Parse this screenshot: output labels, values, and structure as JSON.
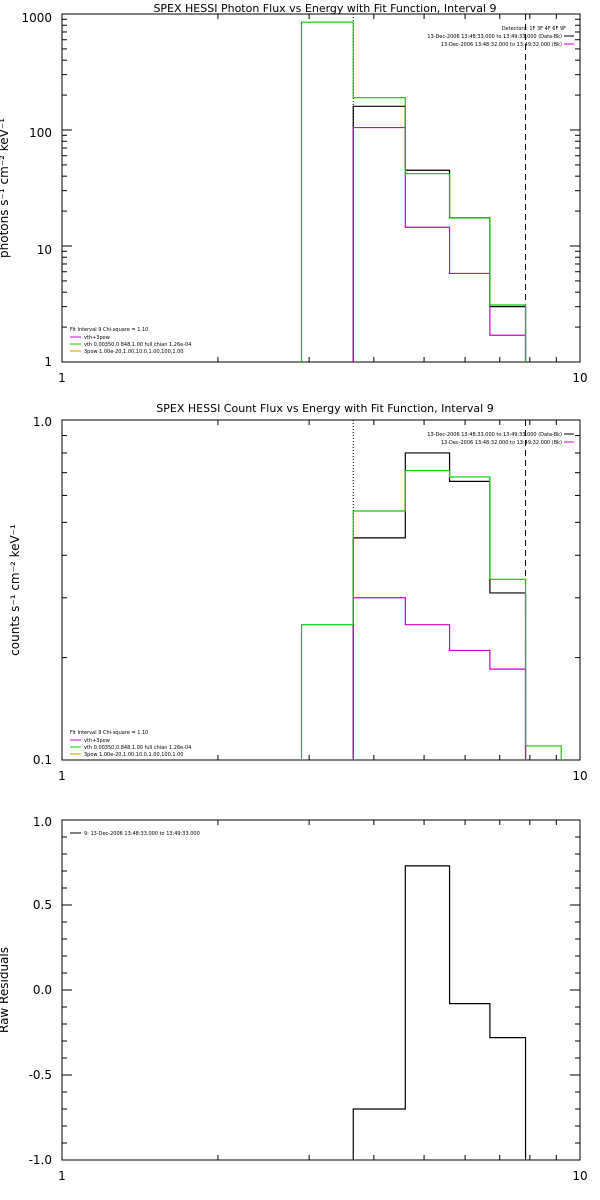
{
  "chart_data": [
    {
      "type": "line",
      "title": "SPEX HESSI Photon Flux vs Energy with Fit Function, Interval 9",
      "ylabel": "photons s⁻¹ cm⁻² keV⁻¹",
      "xlabel": "",
      "xscale": "log",
      "yscale": "log",
      "xlim": [
        1,
        10
      ],
      "ylim": [
        1,
        1000
      ],
      "x_ticks": [
        "1",
        "10"
      ],
      "y_ticks": [
        "1",
        "10",
        "100",
        "1000"
      ],
      "legend_top_right": [
        {
          "text": "Detectors: 1F 3F 4F 6F 9F",
          "color": null
        },
        {
          "text": "13-Dec-2006 13:48:33.000 to 13:49:33.000 (Data-Bk)",
          "color": "#000000"
        },
        {
          "text": "13-Dec-2006 13:48:32.000 to 13:49:32.000 (Bk)",
          "color": "#cc00cc"
        }
      ],
      "legend_bottom_left": [
        {
          "text": "Fit Interval 9   Chi-square = 1.10",
          "color": null
        },
        {
          "text": "vth+3pow",
          "color": "#cc00cc"
        },
        {
          "text": "vth 0.00350,0.848,1.00  full chian 1.26e-04",
          "color": "#00cc00"
        },
        {
          "text": "3pow 1.00e-20,1.00,10.0,1.00,100,1.00",
          "color": "#cc9900"
        }
      ],
      "vlines": [
        {
          "x": 3.65,
          "style": "dotted"
        },
        {
          "x": 7.85,
          "style": "dashed"
        }
      ],
      "series": [
        {
          "name": "13-Dec-2006 13:48:33.000 to 13:49:33.000 (Data-Bk)",
          "color": "#000000",
          "edges": [
            3.65,
            4.6,
            5.6,
            6.7,
            7.85
          ],
          "values": [
            160,
            45,
            17.5,
            3.0
          ]
        },
        {
          "name": "13-Dec-2006 13:48:32.000 to 13:49:32.000 (Bk)",
          "color": "#cc00cc",
          "edges": [
            3.65,
            4.6,
            5.6,
            6.7,
            7.85
          ],
          "values": [
            105,
            14.5,
            5.8,
            1.7
          ]
        },
        {
          "name": "vth 0.00350,0.848,1.00  full chian 1.26e-04",
          "color": "#00cc00",
          "edges": [
            2.9,
            3.65,
            4.6,
            5.6,
            6.7,
            7.85
          ],
          "values": [
            850,
            190,
            42,
            17.5,
            3.1
          ]
        }
      ]
    },
    {
      "type": "line",
      "title": "SPEX HESSI Count Flux vs Energy with Fit Function, Interval 9",
      "ylabel": "counts s⁻¹ cm⁻² keV⁻¹",
      "xlabel": "",
      "xscale": "log",
      "yscale": "log",
      "xlim": [
        1,
        10
      ],
      "ylim": [
        0.1,
        1.0
      ],
      "x_ticks": [
        "1",
        "10"
      ],
      "y_ticks": [
        "0.1",
        "1.0"
      ],
      "legend_top_right": [
        {
          "text": "13-Dec-2006 13:48:33.000 to 13:49:33.000 (Data-Bk)",
          "color": "#000000"
        },
        {
          "text": "13-Dec-2006 13:48:32.000 to 13:49:32.000 (Bk)",
          "color": "#cc00cc"
        }
      ],
      "legend_bottom_left": [
        {
          "text": "Fit Interval 9   Chi-square = 1.10",
          "color": null
        },
        {
          "text": "vth+3pow",
          "color": "#cc00cc"
        },
        {
          "text": "vth 0.00350,0.848,1.00  full chian 1.26e-04",
          "color": "#00cc00"
        },
        {
          "text": "3pow 1.00e-20,1.00,10.0,1.00,100,1.00",
          "color": "#cc9900"
        }
      ],
      "vlines": [
        {
          "x": 3.65,
          "style": "dotted"
        },
        {
          "x": 7.85,
          "style": "dashed"
        }
      ],
      "series": [
        {
          "name": "13-Dec-2006 13:48:33.000 to 13:49:33.000 (Data-Bk)",
          "color": "#000000",
          "edges": [
            3.65,
            4.6,
            5.6,
            6.7,
            7.85
          ],
          "values": [
            0.45,
            0.8,
            0.66,
            0.31
          ]
        },
        {
          "name": "13-Dec-2006 13:48:32.000 to 13:49:32.000 (Bk)",
          "color": "#cc00cc",
          "edges": [
            3.65,
            4.6,
            5.6,
            6.7,
            7.85
          ],
          "values": [
            0.3,
            0.25,
            0.21,
            0.185
          ]
        },
        {
          "name": "vth 0.00350,0.848,1.00  full chian 1.26e-04",
          "color": "#00cc00",
          "edges": [
            2.9,
            3.65,
            4.6,
            5.6,
            6.7,
            7.85,
            9.2
          ],
          "values": [
            0.25,
            0.54,
            0.71,
            0.68,
            0.34,
            0.11
          ]
        }
      ]
    },
    {
      "type": "line",
      "title": "",
      "ylabel": "Raw Residuals",
      "xlabel": "",
      "xscale": "log",
      "yscale": "linear",
      "xlim": [
        1,
        10
      ],
      "ylim": [
        -1.0,
        1.0
      ],
      "x_ticks": [
        "1",
        "10"
      ],
      "y_ticks": [
        "-1.0",
        "-0.5",
        "0.0",
        "0.5",
        "1.0"
      ],
      "legend_top_left": [
        {
          "text": "9: 13-Dec-2006 13:48:33.000 to 13:49:33.000",
          "color": "#000000"
        }
      ],
      "series": [
        {
          "name": "9: 13-Dec-2006 13:48:33.000 to 13:49:33.000",
          "color": "#000000",
          "edges": [
            3.65,
            4.6,
            5.6,
            6.7,
            7.85
          ],
          "values": [
            -0.7,
            0.73,
            -0.08,
            -0.28
          ]
        }
      ]
    }
  ]
}
